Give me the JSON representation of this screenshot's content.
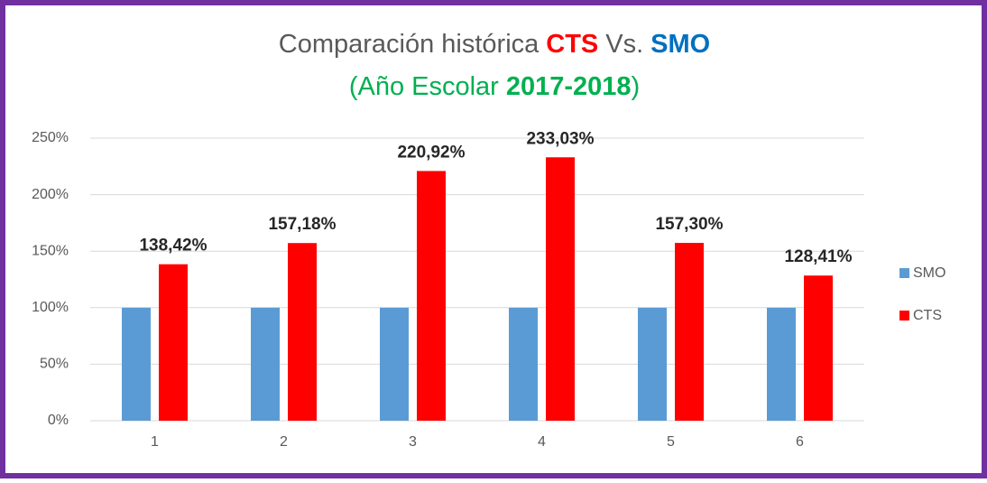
{
  "chart_data": {
    "type": "bar",
    "title": [
      {
        "text": "Comparación histórica",
        "color": "#595959",
        "bold": false
      },
      {
        "text": "CTS",
        "color": "#ff0000",
        "bold": true
      },
      {
        "text": "Vs.",
        "color": "#595959",
        "bold": false
      },
      {
        "text": "SMO",
        "color": "#0070c0",
        "bold": true
      }
    ],
    "subtitle": [
      {
        "text": "(Año Escolar",
        "color": "#00b050",
        "bold": false
      },
      {
        "text": "2017-2018",
        "color": "#00b050",
        "bold": true
      },
      {
        "text": ")",
        "color": "#00b050",
        "bold": false
      }
    ],
    "categories": [
      "1",
      "2",
      "3",
      "4",
      "5",
      "6"
    ],
    "series": [
      {
        "name": "SMO",
        "color": "#5b9bd5",
        "values": [
          100,
          100,
          100,
          100,
          100,
          100
        ]
      },
      {
        "name": "CTS",
        "color": "#ff0000",
        "values": [
          138.42,
          157.18,
          220.92,
          233.03,
          157.3,
          128.41
        ],
        "value_labels": [
          "138,42%",
          "157,18%",
          "220,92%",
          "233,03%",
          "157,30%",
          "128,41%"
        ]
      }
    ],
    "ylim": [
      0,
      250
    ],
    "yticks": [
      {
        "value": 0,
        "label": "0%"
      },
      {
        "value": 50,
        "label": "50%"
      },
      {
        "value": 100,
        "label": "100%"
      },
      {
        "value": 150,
        "label": "150%"
      },
      {
        "value": 200,
        "label": "200%"
      },
      {
        "value": 250,
        "label": "250%"
      }
    ],
    "grid": true,
    "legend": "right"
  }
}
